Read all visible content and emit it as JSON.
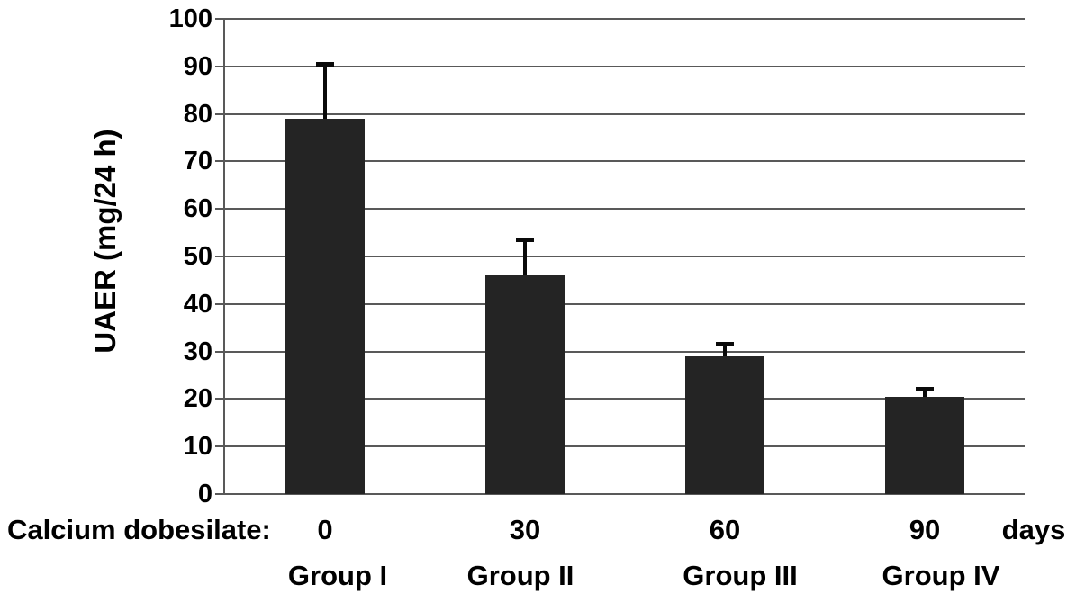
{
  "y_axis": {
    "label": "UAER (mg/24 h)",
    "tick_labels": [
      "0",
      "10",
      "20",
      "30",
      "40",
      "50",
      "60",
      "70",
      "80",
      "90",
      "100"
    ]
  },
  "x_axis": {
    "prefix_label": "Calcium dobesilate:",
    "dose_labels": [
      "0",
      "30",
      "60",
      "90"
    ],
    "unit_label": "days",
    "group_labels": [
      "Group I",
      "Group II",
      "Group III",
      "Group IV"
    ]
  },
  "colors": {
    "bar": "#242424",
    "gridline": "#595959",
    "axis": "#595959",
    "error_bar": "#0a0a0a",
    "text": "#000000"
  },
  "chart_data": {
    "type": "bar",
    "title": "",
    "ylabel": "UAER (mg/24 h)",
    "xlabel_prefix": "Calcium dobesilate:",
    "x_unit": "days",
    "categories": [
      "Group I",
      "Group II",
      "Group III",
      "Group IV"
    ],
    "x_dose_days": [
      0,
      30,
      60,
      90
    ],
    "values": [
      79,
      46,
      29,
      20.5
    ],
    "error_up": [
      12,
      8,
      3,
      2
    ],
    "ylim": [
      0,
      100
    ],
    "ytick_step": 10,
    "grid": true,
    "legend_position": "none"
  }
}
